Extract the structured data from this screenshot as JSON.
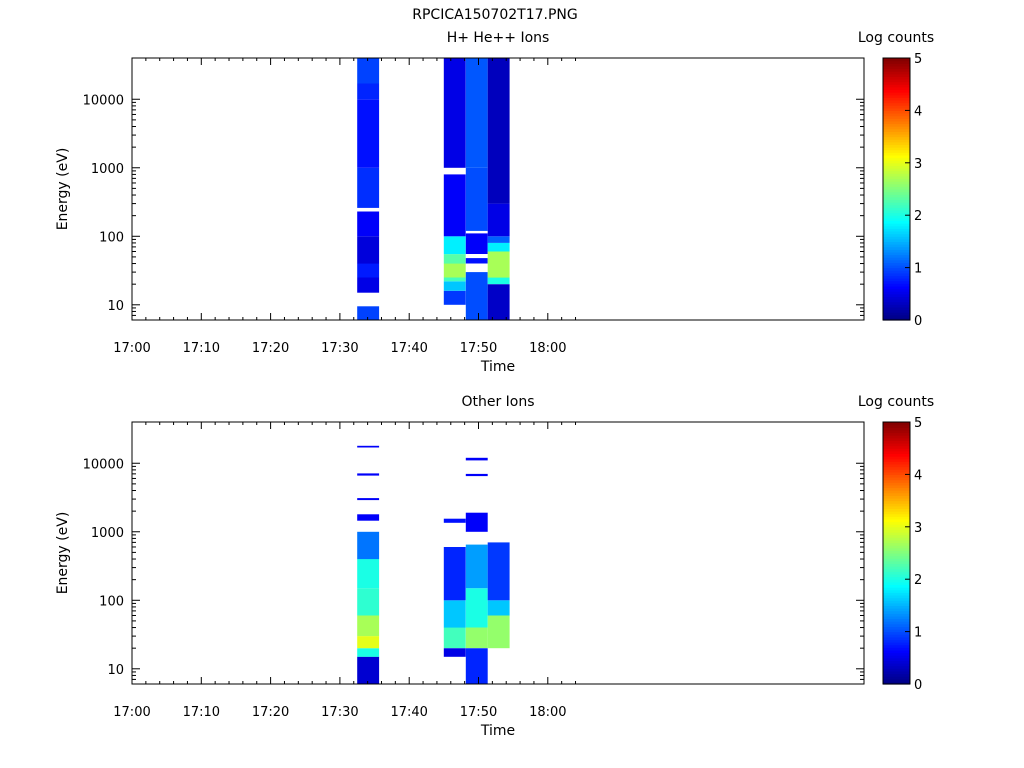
{
  "figure_title": "RPCICA150702T17.PNG",
  "chart_data": [
    {
      "type": "heatmap",
      "title": "H+ He++ Ions",
      "xlabel": "Time",
      "ylabel": "Energy (eV)",
      "y_scale": "log",
      "x_ticks": [
        "17:00",
        "17:10",
        "17:20",
        "17:30",
        "17:40",
        "17:50",
        "18:00"
      ],
      "y_ticks": [
        "10",
        "100",
        "1000",
        "10000"
      ],
      "colorbar": {
        "label": "Log counts",
        "range": [
          0,
          5
        ],
        "ticks": [
          "0",
          "1",
          "2",
          "3",
          "4",
          "5"
        ],
        "colormap": "jet"
      },
      "columns": [
        {
          "t0": "17:32:30",
          "t1": "17:35:40",
          "cells": [
            {
              "e_lo": 6,
              "e_hi": 9.5,
              "v": 0.95
            },
            {
              "e_lo": 15,
              "e_hi": 25,
              "v": 0.5
            },
            {
              "e_lo": 25,
              "e_hi": 40,
              "v": 0.75
            },
            {
              "e_lo": 40,
              "e_hi": 100,
              "v": 0.45
            },
            {
              "e_lo": 100,
              "e_hi": 230,
              "v": 0.6
            },
            {
              "e_lo": 260,
              "e_hi": 1000,
              "v": 0.85
            },
            {
              "e_lo": 1000,
              "e_hi": 10000,
              "v": 0.7
            },
            {
              "e_lo": 10000,
              "e_hi": 17000,
              "v": 0.8
            },
            {
              "e_lo": 17000,
              "e_hi": 40000,
              "v": 0.95
            }
          ]
        },
        {
          "t0": "17:45:00",
          "t1": "17:48:10",
          "cells": [
            {
              "e_lo": 10,
              "e_hi": 16,
              "v": 0.9
            },
            {
              "e_lo": 16,
              "e_hi": 22,
              "v": 1.6
            },
            {
              "e_lo": 22,
              "e_hi": 25,
              "v": 2.2
            },
            {
              "e_lo": 25,
              "e_hi": 40,
              "v": 2.7
            },
            {
              "e_lo": 40,
              "e_hi": 55,
              "v": 2.3
            },
            {
              "e_lo": 55,
              "e_hi": 100,
              "v": 1.8
            },
            {
              "e_lo": 100,
              "e_hi": 800,
              "v": 0.6
            },
            {
              "e_lo": 1000,
              "e_hi": 40000,
              "v": 0.5
            }
          ]
        },
        {
          "t0": "17:48:10",
          "t1": "17:51:20",
          "cells": [
            {
              "e_lo": 6,
              "e_hi": 30,
              "v": 1.0
            },
            {
              "e_lo": 40,
              "e_hi": 48,
              "v": 0.7
            },
            {
              "e_lo": 55,
              "e_hi": 110,
              "v": 0.6
            },
            {
              "e_lo": 120,
              "e_hi": 1000,
              "v": 1.0
            },
            {
              "e_lo": 1000,
              "e_hi": 40000,
              "v": 1.05
            }
          ]
        },
        {
          "t0": "17:51:20",
          "t1": "17:54:30",
          "cells": [
            {
              "e_lo": 6,
              "e_hi": 20,
              "v": 0.35
            },
            {
              "e_lo": 20,
              "e_hi": 25,
              "v": 2.0
            },
            {
              "e_lo": 25,
              "e_hi": 60,
              "v": 2.7
            },
            {
              "e_lo": 60,
              "e_hi": 80,
              "v": 1.8
            },
            {
              "e_lo": 80,
              "e_hi": 100,
              "v": 1.1
            },
            {
              "e_lo": 100,
              "e_hi": 300,
              "v": 0.5
            },
            {
              "e_lo": 300,
              "e_hi": 40000,
              "v": 0.3
            }
          ]
        }
      ]
    },
    {
      "type": "heatmap",
      "title": "Other Ions",
      "xlabel": "Time",
      "ylabel": "Energy (eV)",
      "y_scale": "log",
      "x_ticks": [
        "17:00",
        "17:10",
        "17:20",
        "17:30",
        "17:40",
        "17:50",
        "18:00"
      ],
      "y_ticks": [
        "10",
        "100",
        "1000",
        "10000"
      ],
      "colorbar": {
        "label": "Log counts",
        "range": [
          0,
          5
        ],
        "ticks": [
          "0",
          "1",
          "2",
          "3",
          "4",
          "5"
        ],
        "colormap": "jet"
      },
      "columns": [
        {
          "t0": "17:32:30",
          "t1": "17:35:40",
          "cells": [
            {
              "e_lo": 6,
              "e_hi": 15,
              "v": 0.4
            },
            {
              "e_lo": 15,
              "e_hi": 20,
              "v": 2.0
            },
            {
              "e_lo": 20,
              "e_hi": 30,
              "v": 3.0
            },
            {
              "e_lo": 30,
              "e_hi": 60,
              "v": 2.7
            },
            {
              "e_lo": 60,
              "e_hi": 150,
              "v": 2.1
            },
            {
              "e_lo": 150,
              "e_hi": 400,
              "v": 2.0
            },
            {
              "e_lo": 400,
              "e_hi": 1000,
              "v": 1.2
            },
            {
              "e_lo": 1450,
              "e_hi": 1800,
              "v": 0.6
            },
            {
              "e_lo": 2900,
              "e_hi": 3100,
              "v": 0.6
            },
            {
              "e_lo": 6600,
              "e_hi": 7100,
              "v": 0.6
            },
            {
              "e_lo": 17000,
              "e_hi": 18000,
              "v": 0.6
            }
          ]
        },
        {
          "t0": "17:45:00",
          "t1": "17:48:10",
          "cells": [
            {
              "e_lo": 15,
              "e_hi": 20,
              "v": 0.5
            },
            {
              "e_lo": 20,
              "e_hi": 40,
              "v": 2.2
            },
            {
              "e_lo": 40,
              "e_hi": 100,
              "v": 1.6
            },
            {
              "e_lo": 100,
              "e_hi": 600,
              "v": 0.8
            },
            {
              "e_lo": 1350,
              "e_hi": 1550,
              "v": 0.7
            }
          ]
        },
        {
          "t0": "17:48:10",
          "t1": "17:51:20",
          "cells": [
            {
              "e_lo": 6,
              "e_hi": 20,
              "v": 0.8
            },
            {
              "e_lo": 20,
              "e_hi": 40,
              "v": 2.6
            },
            {
              "e_lo": 40,
              "e_hi": 150,
              "v": 2.0
            },
            {
              "e_lo": 150,
              "e_hi": 650,
              "v": 1.4
            },
            {
              "e_lo": 1000,
              "e_hi": 1900,
              "v": 0.6
            },
            {
              "e_lo": 6500,
              "e_hi": 7000,
              "v": 0.6
            },
            {
              "e_lo": 11000,
              "e_hi": 12000,
              "v": 0.6
            }
          ]
        },
        {
          "t0": "17:51:20",
          "t1": "17:54:30",
          "cells": [
            {
              "e_lo": 20,
              "e_hi": 60,
              "v": 2.6
            },
            {
              "e_lo": 60,
              "e_hi": 100,
              "v": 1.6
            },
            {
              "e_lo": 100,
              "e_hi": 700,
              "v": 0.9
            }
          ]
        }
      ]
    }
  ]
}
